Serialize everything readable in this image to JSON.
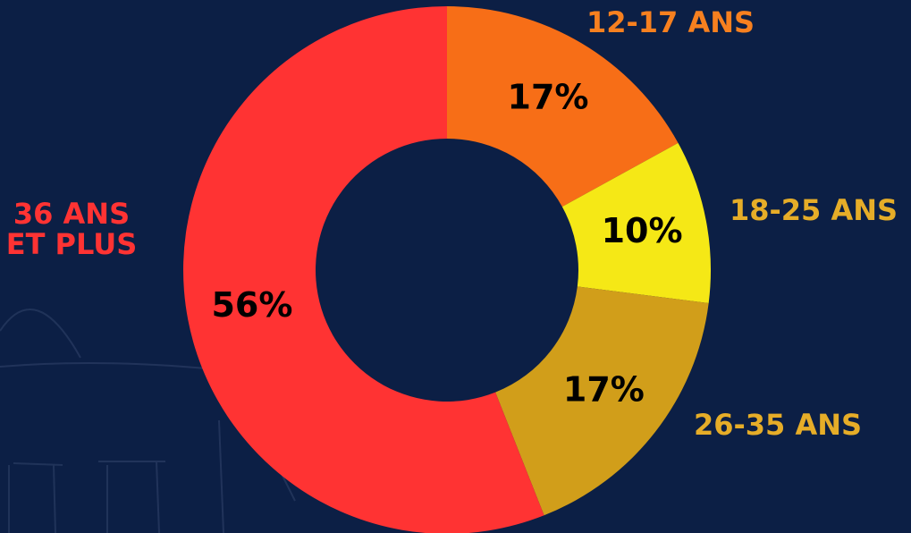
{
  "chart_data": {
    "type": "donut",
    "categories": [
      "12-17 ANS",
      "18-25 ANS",
      "26-35 ANS",
      "36 ANS ET PLUS"
    ],
    "values": [
      17,
      10,
      17,
      56
    ],
    "value_labels": [
      "17%",
      "10%",
      "17%",
      "56%"
    ],
    "colors": [
      "#f76e17",
      "#f5e816",
      "#d19e1a",
      "#ff3333"
    ],
    "label_colors": [
      "#f7801f",
      "#e6ad28",
      "#e6ad28",
      "#ff3333"
    ]
  }
}
